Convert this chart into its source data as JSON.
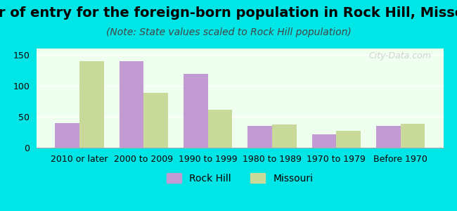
{
  "title": "Year of entry for the foreign-born population in Rock Hill, Missouri",
  "subtitle": "(Note: State values scaled to Rock Hill population)",
  "categories": [
    "2010 or later",
    "2000 to 2009",
    "1990 to 1999",
    "1980 to 1989",
    "1970 to 1979",
    "Before 1970"
  ],
  "rock_hill": [
    40,
    140,
    119,
    35,
    22,
    35
  ],
  "missouri": [
    140,
    88,
    61,
    38,
    27,
    39
  ],
  "rock_hill_color": "#c39bd3",
  "missouri_color": "#c8d99a",
  "background_outer": "#00e5e5",
  "background_inner": "#efffef",
  "ylim": [
    0,
    160
  ],
  "yticks": [
    0,
    50,
    100,
    150
  ],
  "bar_width": 0.38,
  "legend_rock_hill": "Rock Hill",
  "legend_missouri": "Missouri",
  "title_fontsize": 14,
  "subtitle_fontsize": 10,
  "tick_fontsize": 9,
  "legend_fontsize": 10,
  "watermark": "City-Data.com"
}
